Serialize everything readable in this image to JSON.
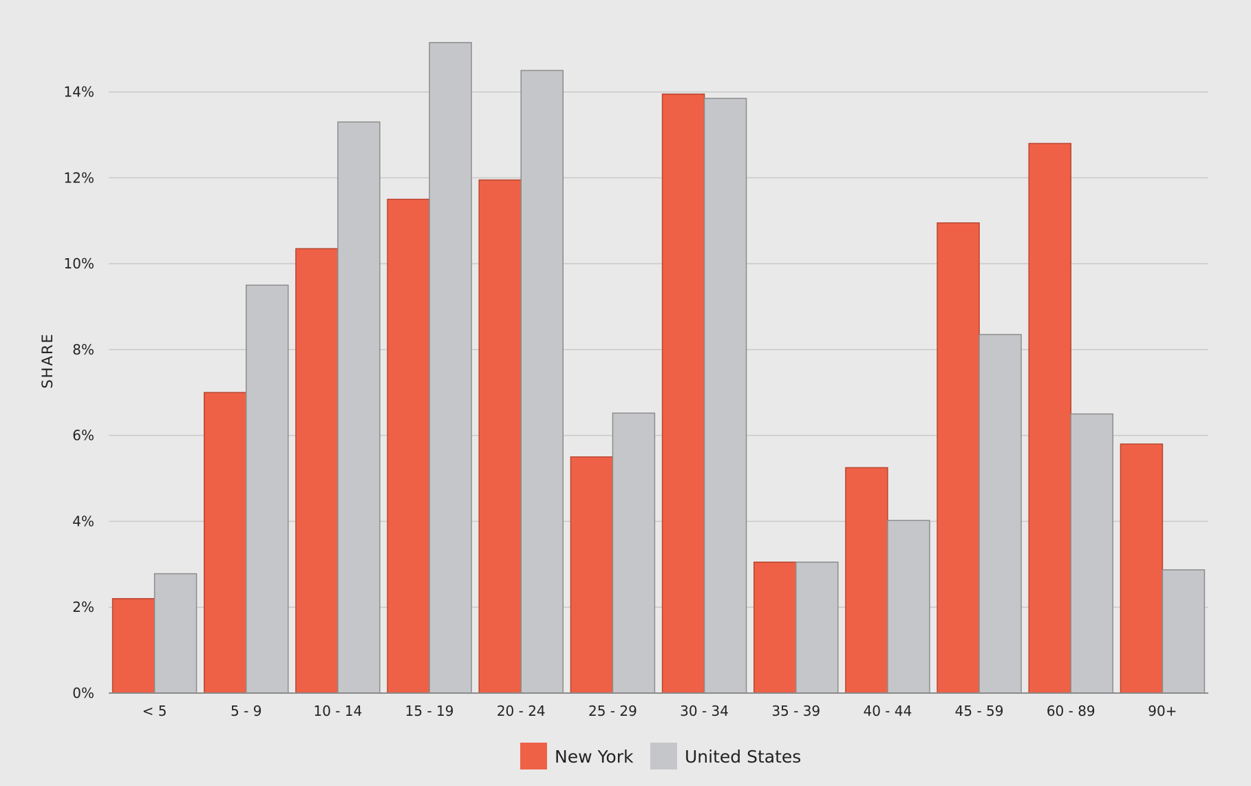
{
  "colors": {
    "background": "#e9e9e9",
    "grid": "#c9c9c9",
    "axis": "#8a8a8a",
    "series_new_york": "#ef6146",
    "series_new_york_stroke": "#b94530",
    "series_united_states": "#c5c6c9",
    "series_united_states_stroke": "#8c8c8c"
  },
  "chart_data": {
    "type": "bar",
    "title": "",
    "xlabel": "",
    "ylabel": "SHARE",
    "y_format": "percent",
    "ylim": [
      0,
      15.5
    ],
    "yticks": [
      0,
      2,
      4,
      6,
      8,
      10,
      12,
      14
    ],
    "grid": true,
    "legend_position": "bottom",
    "categories": [
      "< 5",
      "5 - 9",
      "10 - 14",
      "15 - 19",
      "20 - 24",
      "25 - 29",
      "30 - 34",
      "35 - 39",
      "40 - 44",
      "45 - 59",
      "60 - 89",
      "90+"
    ],
    "series": [
      {
        "name": "New York",
        "color": "#ef6146",
        "values": [
          2.2,
          7.0,
          10.35,
          11.5,
          11.95,
          5.5,
          13.95,
          3.05,
          5.25,
          10.95,
          12.8,
          5.8
        ]
      },
      {
        "name": "United States",
        "color": "#c5c6c9",
        "values": [
          2.78,
          9.5,
          13.3,
          15.15,
          14.5,
          6.52,
          13.85,
          3.05,
          4.02,
          8.35,
          6.5,
          2.87
        ]
      }
    ]
  }
}
